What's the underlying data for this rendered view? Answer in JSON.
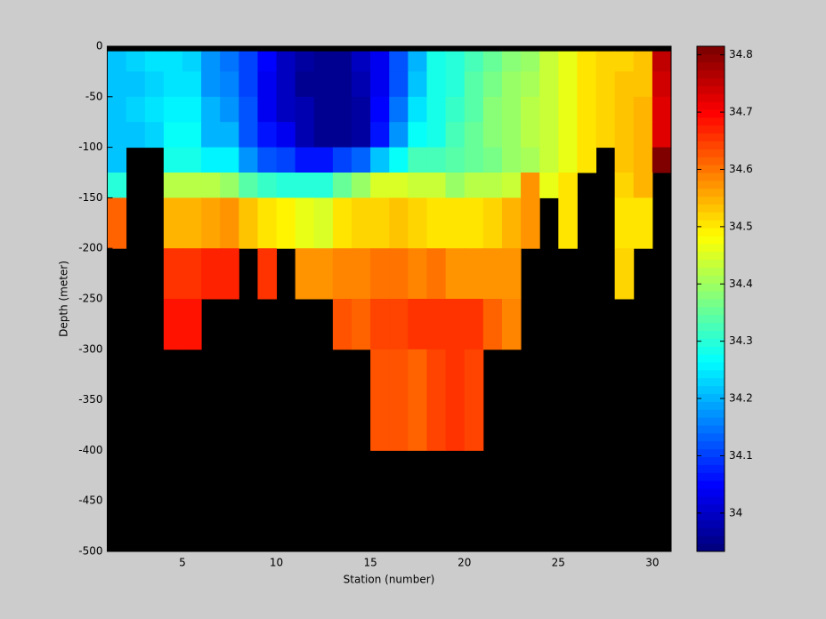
{
  "chart_data": {
    "type": "heatmap",
    "xlabel": "Station (number)",
    "ylabel": "Depth (meter)",
    "x": [
      1,
      2,
      3,
      4,
      5,
      6,
      7,
      8,
      9,
      10,
      11,
      12,
      13,
      14,
      15,
      16,
      17,
      18,
      19,
      20,
      21,
      22,
      23,
      24,
      25,
      26,
      27,
      28,
      29,
      30,
      31
    ],
    "y": [
      0,
      -5,
      -25,
      -50,
      -75,
      -100,
      -125,
      -150,
      -200,
      -250,
      -300,
      -400,
      -500
    ],
    "xlim": [
      1,
      31
    ],
    "ylim": [
      -500,
      0
    ],
    "xticks": [
      5,
      10,
      15,
      20,
      25,
      30
    ],
    "yticks": [
      0,
      -50,
      -100,
      -150,
      -200,
      -250,
      -300,
      -350,
      -400,
      -450,
      -500
    ],
    "colormap": "jet",
    "nan_color": "#000000",
    "colorbar": {
      "clim": [
        33.933,
        34.815
      ],
      "ticks": [
        34,
        34.1,
        34.2,
        34.3,
        34.4,
        34.5,
        34.6,
        34.7,
        34.8
      ]
    },
    "z": [
      [
        null,
        null,
        null,
        null,
        null,
        null,
        null,
        null,
        null,
        null,
        null,
        null,
        null,
        null,
        null,
        null,
        null,
        null,
        null,
        null,
        null,
        null,
        null,
        null,
        null,
        null,
        null,
        null,
        null,
        null
      ],
      [
        34.22,
        34.23,
        34.24,
        34.24,
        34.23,
        34.18,
        34.15,
        34.1,
        34.05,
        34.0,
        33.97,
        33.95,
        33.95,
        34.0,
        34.03,
        34.12,
        34.2,
        34.28,
        34.3,
        34.33,
        34.36,
        34.38,
        34.4,
        34.43,
        34.46,
        34.5,
        34.52,
        34.52,
        34.53,
        34.75
      ],
      [
        34.22,
        34.22,
        34.23,
        34.24,
        34.24,
        34.18,
        34.16,
        34.11,
        34.04,
        34.0,
        33.96,
        33.95,
        33.95,
        33.98,
        34.03,
        34.12,
        34.22,
        34.28,
        34.3,
        34.34,
        34.37,
        34.39,
        34.41,
        34.44,
        34.47,
        34.51,
        34.52,
        34.53,
        34.53,
        34.74
      ],
      [
        34.22,
        34.23,
        34.24,
        34.25,
        34.25,
        34.2,
        34.18,
        34.12,
        34.03,
        34.0,
        33.98,
        33.95,
        33.95,
        33.97,
        34.05,
        34.14,
        34.24,
        34.28,
        34.31,
        34.34,
        34.38,
        34.4,
        34.42,
        34.44,
        34.47,
        34.51,
        34.52,
        34.53,
        34.54,
        34.73
      ],
      [
        34.21,
        34.22,
        34.23,
        34.27,
        34.27,
        34.2,
        34.2,
        34.12,
        34.06,
        34.04,
        33.98,
        33.95,
        33.95,
        33.97,
        34.06,
        34.17,
        34.27,
        34.29,
        34.32,
        34.36,
        34.38,
        34.4,
        34.42,
        34.44,
        34.47,
        34.5,
        34.52,
        34.53,
        34.54,
        34.73
      ],
      [
        34.21,
        null,
        null,
        34.29,
        34.29,
        34.26,
        34.26,
        34.18,
        34.12,
        34.1,
        34.06,
        34.06,
        34.1,
        34.13,
        34.22,
        34.27,
        34.32,
        34.33,
        34.34,
        34.36,
        34.37,
        34.39,
        34.41,
        34.43,
        34.47,
        34.5,
        null,
        34.53,
        34.54,
        34.81
      ],
      [
        34.3,
        null,
        null,
        34.42,
        34.42,
        34.42,
        34.4,
        34.34,
        34.31,
        34.3,
        34.3,
        34.3,
        34.35,
        34.4,
        34.45,
        34.45,
        34.44,
        34.43,
        34.4,
        34.42,
        34.42,
        34.44,
        34.57,
        34.47,
        34.5,
        null,
        null,
        34.52,
        34.55,
        null
      ],
      [
        34.62,
        null,
        null,
        34.54,
        34.54,
        34.56,
        34.57,
        34.53,
        34.5,
        34.49,
        34.46,
        34.45,
        34.5,
        34.52,
        34.52,
        34.53,
        34.52,
        34.51,
        34.51,
        34.51,
        34.52,
        34.54,
        34.57,
        null,
        34.5,
        null,
        null,
        34.5,
        34.51,
        null
      ],
      [
        null,
        null,
        null,
        34.65,
        34.65,
        34.67,
        34.67,
        null,
        34.65,
        null,
        34.57,
        34.57,
        34.59,
        34.59,
        34.6,
        34.6,
        34.59,
        34.6,
        34.58,
        34.58,
        34.58,
        34.58,
        null,
        null,
        null,
        null,
        null,
        34.52,
        null,
        null
      ],
      [
        null,
        null,
        null,
        34.68,
        34.68,
        null,
        null,
        null,
        null,
        null,
        null,
        null,
        34.63,
        34.62,
        34.64,
        34.64,
        34.65,
        34.65,
        34.65,
        34.65,
        34.62,
        34.59,
        null,
        null,
        null,
        null,
        null,
        null,
        null,
        null
      ],
      [
        null,
        null,
        null,
        null,
        null,
        null,
        null,
        null,
        null,
        null,
        null,
        null,
        null,
        null,
        34.63,
        34.63,
        34.62,
        34.64,
        34.65,
        34.64,
        null,
        null,
        null,
        null,
        null,
        null,
        null,
        null,
        null,
        null
      ],
      [
        null,
        null,
        null,
        null,
        null,
        null,
        null,
        null,
        null,
        null,
        null,
        null,
        null,
        null,
        null,
        null,
        null,
        null,
        null,
        null,
        null,
        null,
        null,
        null,
        null,
        null,
        null,
        null,
        null,
        null
      ]
    ]
  }
}
